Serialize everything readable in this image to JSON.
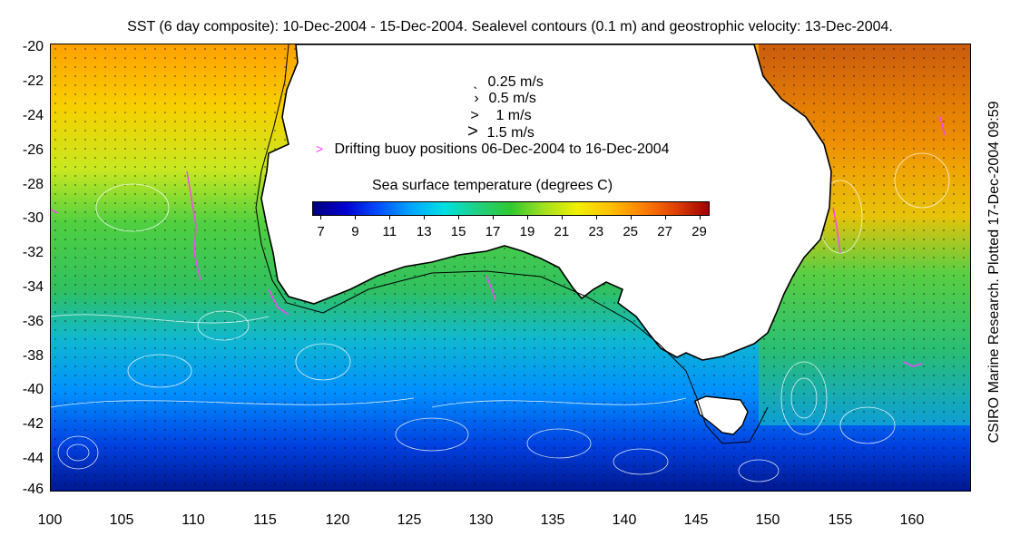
{
  "title": "SST (6 day composite): 10-Dec-2004 - 15-Dec-2004. Sealevel contours (0.1 m) and geostrophic velocity: 13-Dec-2004.",
  "credit": "CSIRO Marine Research. Plotted 17-Dec-2004 09:59",
  "y_axis": {
    "ticks": [
      "-20",
      "-22",
      "-24",
      "-26",
      "-28",
      "-30",
      "-32",
      "-34",
      "-36",
      "-38",
      "-40",
      "-42",
      "-44",
      "-46"
    ]
  },
  "x_axis": {
    "ticks": [
      "100",
      "105",
      "110",
      "115",
      "120",
      "125",
      "130",
      "135",
      "140",
      "145",
      "150",
      "155",
      "160"
    ]
  },
  "legend": {
    "velocity_scale": [
      {
        "label": "0.25 m/s",
        "glyph": "ˎ"
      },
      {
        "label": "0.5 m/s",
        "glyph": "›"
      },
      {
        "label": "1 m/s",
        "glyph": ">"
      },
      {
        "label": "1.5 m/s",
        "glyph": ">"
      }
    ],
    "buoy": {
      "label": "Drifting buoy positions 06-Dec-2004 to 16-Dec-2004",
      "glyph": ">",
      "color": "#ff40ff"
    },
    "colorbar": {
      "title": "Sea surface temperature (degrees C)",
      "ticks": [
        "7",
        "9",
        "11",
        "13",
        "15",
        "17",
        "19",
        "21",
        "23",
        "25",
        "27",
        "29"
      ],
      "range": [
        6.5,
        29.5
      ],
      "colors": [
        "#00007f",
        "#0000d0",
        "#0050ff",
        "#00a8ff",
        "#00e0e0",
        "#20d080",
        "#30c830",
        "#a0e020",
        "#f0f000",
        "#ffc000",
        "#ff8000",
        "#e04000",
        "#a00000"
      ]
    }
  },
  "map": {
    "lon_range": [
      100,
      164
    ],
    "lat_range": [
      -46,
      -20
    ],
    "land_color": "#ffffff",
    "coast_color": "#000000",
    "contour_color": "#ffffff",
    "buoy_color": "#ff40ff"
  }
}
